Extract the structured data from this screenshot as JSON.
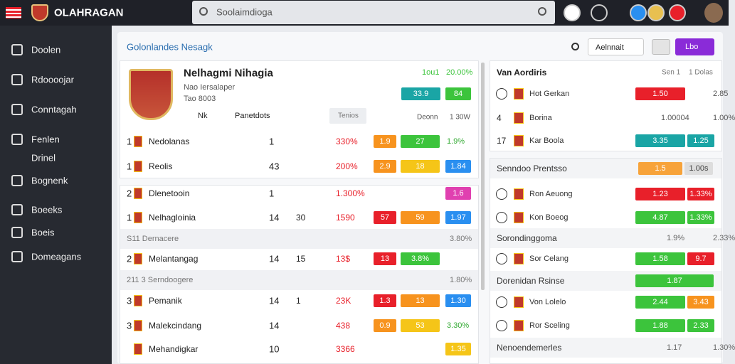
{
  "header": {
    "brand": "OLAHRAGAN",
    "search": "Soolaimdioga"
  },
  "sidebar": {
    "items": [
      "Doolen",
      "Rdoooojar",
      "Conntagah",
      "Fenlen",
      "Drinel",
      "Bognenk",
      "Boeeks",
      "Boeis",
      "Domeagans"
    ]
  },
  "toolbar": {
    "title": "Golonlandes Nesagk",
    "dropdown": "Aelnnait",
    "button": "Lbo"
  },
  "team": {
    "name": "Nelhagmi Nihagia",
    "sub": "Nao Iersalaper",
    "code": "Tao 8003",
    "stat1": "1ou1",
    "stat2": "20.00%",
    "badge1": "33.9",
    "badge2": "84",
    "tab1": "Nk",
    "tab2": "Panetdots",
    "col1": "Tenios",
    "col2": "Deonn",
    "col3": "1 30W"
  },
  "left_rows": [
    {
      "rank": "1",
      "name": "Nedolanas",
      "num": "1",
      "pct": "330%",
      "badges": [
        {
          "text": "1.9",
          "color": "#f7931e"
        },
        {
          "text": "27",
          "color": "#3cc43c"
        },
        {
          "text": "1.9%"
        }
      ]
    },
    {
      "rank": "1",
      "name": "Reolis",
      "num": "43",
      "pct": "200%",
      "badges": [
        {
          "text": "2.9",
          "color": "#f7931e"
        },
        {
          "text": "18",
          "color": "#f5c518"
        },
        {
          "text": "1.84",
          "color": "#2a8ff0"
        }
      ]
    },
    {
      "rank": "2",
      "name": "Dlenetooin",
      "num": "1",
      "pct": "1.300%",
      "badges": [
        {
          "text": "1.6",
          "color": "#e040b0"
        }
      ]
    },
    {
      "rank": "1",
      "name": "Nelhagloinia",
      "num": "14",
      "num2": "30",
      "pct": "1590",
      "badges": [
        {
          "text": "57",
          "color": "#e8202a"
        },
        {
          "text": "59",
          "color": "#f7931e"
        },
        {
          "text": "1.97",
          "color": "#2a8ff0"
        }
      ]
    },
    {
      "rank": "2",
      "name": "Melantangag",
      "num": "14",
      "num2": "15",
      "pct": "13$",
      "badges": [
        {
          "text": "13",
          "color": "#e8202a"
        },
        {
          "text": "3.8%",
          "color": "#3cc43c"
        }
      ]
    },
    {
      "rank": "3",
      "name": "Pemanik",
      "num": "14",
      "num2": "1",
      "pct": "23K",
      "badges": [
        {
          "text": "1.3",
          "color": "#e8202a"
        },
        {
          "text": "13",
          "color": "#f7931e"
        },
        {
          "text": "1.30",
          "color": "#2a8ff0"
        }
      ]
    },
    {
      "rank": "3",
      "name": "Malekcindang",
      "num": "14",
      "pct": "438",
      "badges": [
        {
          "text": "0.9",
          "color": "#f7931e"
        },
        {
          "text": "53",
          "color": "#f5c518"
        },
        {
          "text": "3.30%"
        }
      ]
    },
    {
      "name": "Mehandigkar",
      "num": "10",
      "pct": "3366",
      "badges": [
        {
          "text": "1.35",
          "color": "#f5c518"
        }
      ]
    }
  ],
  "left_sections": [
    {
      "label": "S11 Dernacere",
      "value": "3.80%"
    },
    {
      "label": "211 3 Serndoogere",
      "value": "1.80%"
    }
  ],
  "right_header": {
    "title": "Van Aordiris",
    "col1": "Sen 1",
    "col2": "1 Dolas"
  },
  "right_rows": [
    {
      "name": "Hot Gerkan",
      "b1": {
        "text": "1.50",
        "color": "#e8202a"
      },
      "b2": {
        "text": "2.85"
      }
    },
    {
      "rank": "4",
      "name": "Borina",
      "b1": {
        "text": "1.00004"
      },
      "b2": {
        "text": "1.00%"
      }
    },
    {
      "rank": "17",
      "name": "Kar Boola",
      "b1": {
        "text": "3.35",
        "color": "#1aa5a5"
      },
      "b2": {
        "text": "1.25",
        "color": "#1aa5a5"
      }
    },
    {
      "name": "Ron Aeuong",
      "b1": {
        "text": "1.23",
        "color": "#e8202a"
      },
      "b2": {
        "text": "1.33%",
        "color": "#e8202a"
      }
    },
    {
      "name": "Kon Boeog",
      "b1": {
        "text": "4.87",
        "color": "#3cc43c"
      },
      "b2": {
        "text": "1.33%",
        "color": "#3cc43c"
      }
    },
    {
      "name": "Sor Celang",
      "b1": {
        "text": "1.58",
        "color": "#3cc43c"
      },
      "b2": {
        "text": "9.7",
        "color": "#e8202a"
      }
    },
    {
      "name": "Von Lolelo",
      "b1": {
        "text": "2.44",
        "color": "#3cc43c"
      },
      "b2": {
        "text": "3.43",
        "color": "#f7931e"
      }
    },
    {
      "name": "Ror Sceling",
      "b1": {
        "text": "1.88",
        "color": "#3cc43c"
      },
      "b2": {
        "text": "2.33",
        "color": "#3cc43c"
      }
    }
  ],
  "right_sections": [
    {
      "label": "Senndoo Prentsso",
      "values": [
        {
          "text": "1.5",
          "color": "#f7a33a"
        },
        {
          "text": "1.00s",
          "color": "#ddd"
        }
      ]
    },
    {
      "label": "Sorondinggoma",
      "values": [
        {
          "text": "1.9%"
        },
        {
          "text": "2.33%"
        }
      ]
    },
    {
      "label": "Dorenidan Rsinse",
      "values": [
        {
          "text": "1.87",
          "color": "#3cc43c"
        }
      ]
    },
    {
      "label": "Nenoendemerles",
      "values": [
        {
          "text": "1.17"
        },
        {
          "text": "1.30%"
        }
      ]
    }
  ]
}
